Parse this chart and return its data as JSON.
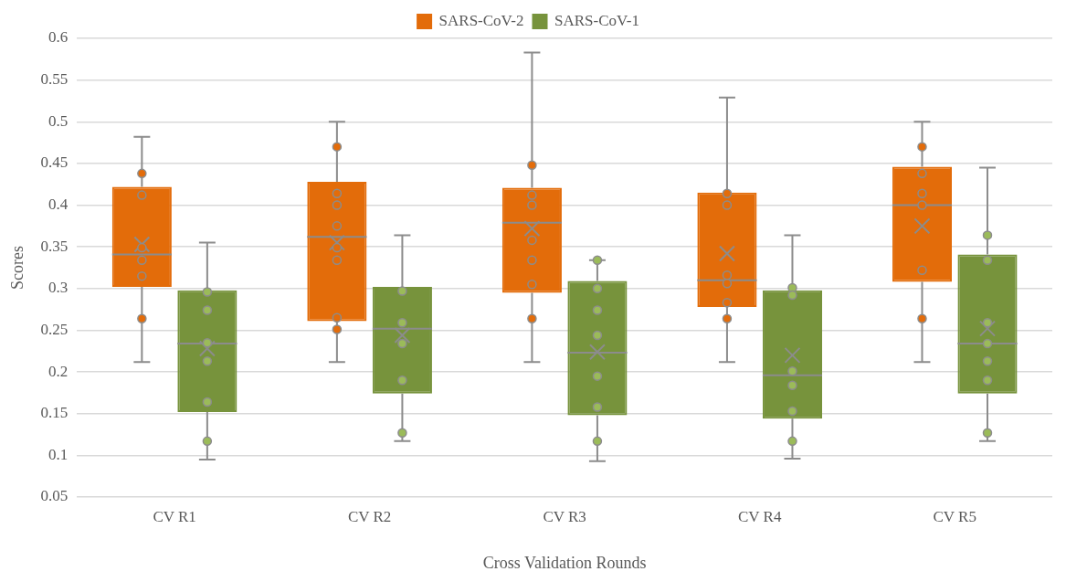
{
  "chart_data": {
    "type": "box",
    "xlabel": "Cross Validation Rounds",
    "ylabel": "Scores",
    "categories": [
      "CV R1",
      "CV R2",
      "CV R3",
      "CV R4",
      "CV R5"
    ],
    "ylim": [
      0.05,
      0.6
    ],
    "yticks": [
      0.05,
      0.1,
      0.15,
      0.2,
      0.25,
      0.3,
      0.35,
      0.4,
      0.45,
      0.5,
      0.55,
      0.6
    ],
    "grid": "y",
    "legend": "top",
    "series": [
      {
        "name": "SARS-CoV-2",
        "type": "box",
        "color": "#e36c0a",
        "boxes": [
          {
            "low": 0.212,
            "q1": 0.302,
            "median": 0.341,
            "q3": 0.422,
            "high": 0.482,
            "mean": 0.353
          },
          {
            "low": 0.212,
            "q1": 0.261,
            "median": 0.362,
            "q3": 0.428,
            "high": 0.5,
            "mean": 0.355
          },
          {
            "low": 0.212,
            "q1": 0.295,
            "median": 0.379,
            "q3": 0.421,
            "high": 0.583,
            "mean": 0.372
          },
          {
            "low": 0.212,
            "q1": 0.278,
            "median": 0.31,
            "q3": 0.415,
            "high": 0.529,
            "mean": 0.342
          },
          {
            "low": 0.212,
            "q1": 0.308,
            "median": 0.4,
            "q3": 0.446,
            "high": 0.5,
            "mean": 0.375
          }
        ]
      },
      {
        "name": "SARS-CoV-1",
        "type": "box",
        "color": "#77933c",
        "boxes": [
          {
            "low": 0.095,
            "q1": 0.152,
            "median": 0.234,
            "q3": 0.298,
            "high": 0.355,
            "mean": 0.228
          },
          {
            "low": 0.117,
            "q1": 0.174,
            "median": 0.252,
            "q3": 0.302,
            "high": 0.364,
            "mean": 0.244
          },
          {
            "low": 0.093,
            "q1": 0.148,
            "median": 0.223,
            "q3": 0.309,
            "high": 0.334,
            "mean": 0.224
          },
          {
            "low": 0.096,
            "q1": 0.144,
            "median": 0.196,
            "q3": 0.298,
            "high": 0.364,
            "mean": 0.22
          },
          {
            "low": 0.117,
            "q1": 0.174,
            "median": 0.234,
            "q3": 0.341,
            "high": 0.445,
            "mean": 0.252
          }
        ]
      },
      {
        "type": "scatter",
        "color": "#e36c0a",
        "marker": "circle",
        "x": [
          "CV R1",
          "CV R1",
          "CV R1",
          "CV R1",
          "CV R1",
          "CV R1",
          "CV R2",
          "CV R2",
          "CV R2",
          "CV R2",
          "CV R2",
          "CV R2",
          "CV R2",
          "CV R2",
          "CV R3",
          "CV R3",
          "CV R3",
          "CV R3",
          "CV R3",
          "CV R3",
          "CV R3",
          "CV R4",
          "CV R4",
          "CV R4",
          "CV R4",
          "CV R4",
          "CV R4",
          "CV R5",
          "CV R5",
          "CV R5",
          "CV R5",
          "CV R5",
          "CV R5"
        ],
        "values": [
          0.438,
          0.412,
          0.349,
          0.334,
          0.315,
          0.264,
          0.47,
          0.414,
          0.4,
          0.375,
          0.349,
          0.334,
          0.265,
          0.251,
          0.448,
          0.412,
          0.4,
          0.358,
          0.334,
          0.305,
          0.264,
          0.414,
          0.4,
          0.316,
          0.306,
          0.283,
          0.264,
          0.47,
          0.438,
          0.414,
          0.4,
          0.322,
          0.264
        ]
      },
      {
        "type": "scatter",
        "color": "#9bbb59",
        "marker": "circle",
        "x": [
          "CV R1",
          "CV R1",
          "CV R1",
          "CV R1",
          "CV R1",
          "CV R1",
          "CV R2",
          "CV R2",
          "CV R2",
          "CV R2",
          "CV R2",
          "CV R3",
          "CV R3",
          "CV R3",
          "CV R3",
          "CV R3",
          "CV R3",
          "CV R3",
          "CV R4",
          "CV R4",
          "CV R4",
          "CV R4",
          "CV R4",
          "CV R4",
          "CV R5",
          "CV R5",
          "CV R5",
          "CV R5",
          "CV R5",
          "CV R5",
          "CV R5"
        ],
        "values": [
          0.296,
          0.274,
          0.235,
          0.213,
          0.164,
          0.117,
          0.297,
          0.259,
          0.234,
          0.19,
          0.127,
          0.334,
          0.3,
          0.274,
          0.244,
          0.195,
          0.158,
          0.117,
          0.301,
          0.292,
          0.201,
          0.184,
          0.153,
          0.117,
          0.364,
          0.334,
          0.259,
          0.234,
          0.213,
          0.19,
          0.127
        ]
      }
    ]
  }
}
